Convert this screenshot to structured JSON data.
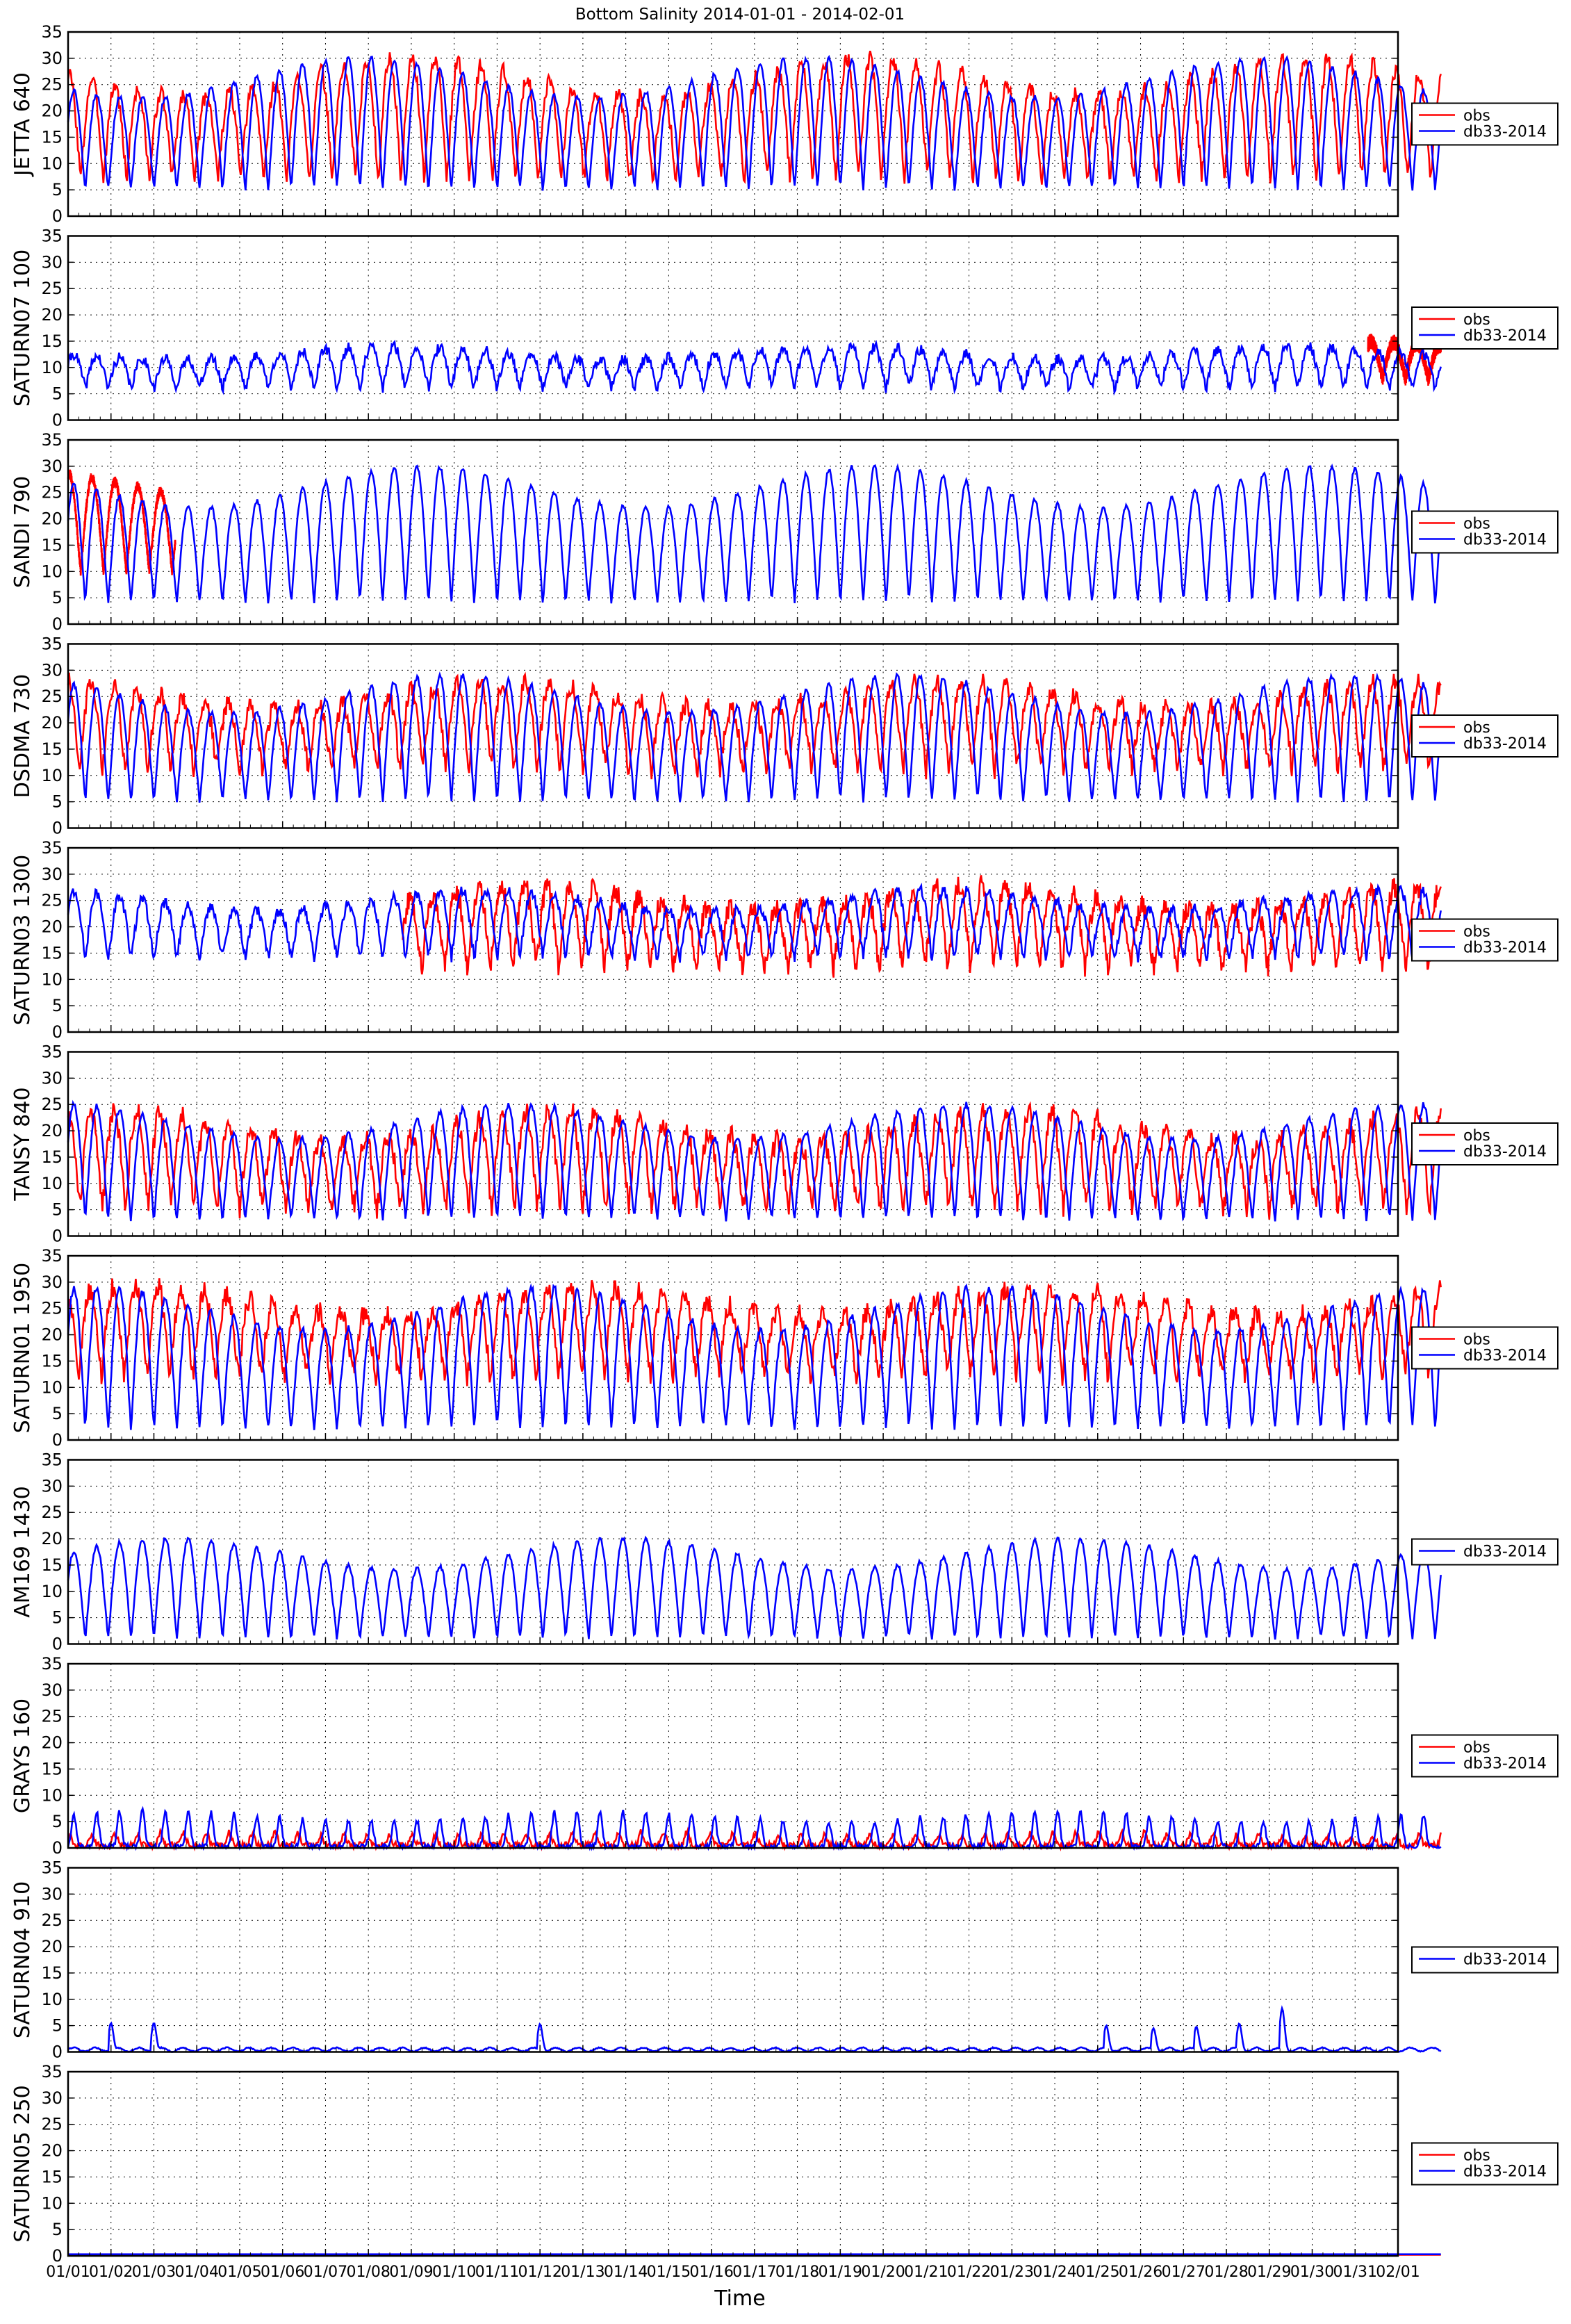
{
  "page": {
    "title": "Bottom Salinity 2014-01-01 - 2014-02-01",
    "xlabel": "Time"
  },
  "chart_data": [
    {
      "type": "line",
      "ylabel": "JETTA 640",
      "ylim": [
        0,
        35
      ],
      "yticks": [
        0,
        5,
        10,
        15,
        20,
        25,
        30,
        35
      ],
      "grid": true,
      "legend_position": "right",
      "series": [
        {
          "name": "obs",
          "color": "#ff0000",
          "profile": {
            "high": 30,
            "low": 7,
            "extent": [
              0,
              32
            ],
            "cycles": 60,
            "phase": 0.2,
            "noise": 1.5
          }
        },
        {
          "name": "db33-2014",
          "color": "#0000ff",
          "profile": {
            "high": 30,
            "low": 5,
            "extent": [
              0,
              32
            ],
            "cycles": 60,
            "phase": 0.0,
            "noise": 0.5
          }
        }
      ]
    },
    {
      "type": "line",
      "ylabel": "SATURN07 100",
      "ylim": [
        0,
        35
      ],
      "yticks": [
        0,
        5,
        10,
        15,
        20,
        25,
        30,
        35
      ],
      "grid": true,
      "legend_position": "right",
      "series": [
        {
          "name": "obs",
          "color": "#ff0000",
          "profile": {
            "high": 15,
            "low": 8,
            "extent": [
              30.3,
              32
            ],
            "cycles": 60,
            "phase": 0.3,
            "noise": 1.5
          }
        },
        {
          "name": "db33-2014",
          "color": "#0000ff",
          "profile": {
            "high": 14,
            "low": 6,
            "extent": [
              0,
              32
            ],
            "cycles": 60,
            "phase": 0.0,
            "noise": 1.0
          }
        }
      ]
    },
    {
      "type": "line",
      "ylabel": "SANDI 790",
      "ylim": [
        0,
        35
      ],
      "yticks": [
        0,
        5,
        10,
        15,
        20,
        25,
        30,
        35
      ],
      "grid": true,
      "legend_position": "right",
      "series": [
        {
          "name": "obs",
          "color": "#ff0000",
          "profile": {
            "high": 29,
            "low": 10,
            "extent": [
              0,
              2.5
            ],
            "cycles": 60,
            "phase": 0.2,
            "noise": 1.0
          }
        },
        {
          "name": "db33-2014",
          "color": "#0000ff",
          "profile": {
            "high": 30,
            "low": 4,
            "extent": [
              0,
              32
            ],
            "cycles": 60,
            "phase": 0.0,
            "noise": 0.4
          }
        }
      ]
    },
    {
      "type": "line",
      "ylabel": "DSDMA 730",
      "ylim": [
        0,
        35
      ],
      "yticks": [
        0,
        5,
        10,
        15,
        20,
        25,
        30,
        35
      ],
      "grid": true,
      "legend_position": "right",
      "series": [
        {
          "name": "obs",
          "color": "#ff0000",
          "profile": {
            "high": 28,
            "low": 11,
            "extent": [
              0,
              32
            ],
            "cycles": 60,
            "phase": 0.25,
            "noise": 1.8
          }
        },
        {
          "name": "db33-2014",
          "color": "#0000ff",
          "profile": {
            "high": 29,
            "low": 5,
            "extent": [
              0,
              32
            ],
            "cycles": 60,
            "phase": 0.0,
            "noise": 0.5
          }
        }
      ]
    },
    {
      "type": "line",
      "ylabel": "SATURN03 1300",
      "ylim": [
        0,
        35
      ],
      "yticks": [
        0,
        5,
        10,
        15,
        20,
        25,
        30,
        35
      ],
      "grid": true,
      "legend_position": "right",
      "series": [
        {
          "name": "obs",
          "color": "#ff0000",
          "profile": {
            "high": 28,
            "low": 12,
            "extent": [
              7.8,
              32
            ],
            "cycles": 60,
            "phase": 0.3,
            "noise": 2.0
          }
        },
        {
          "name": "db33-2014",
          "color": "#0000ff",
          "profile": {
            "high": 27,
            "low": 14,
            "extent": [
              0,
              32
            ],
            "cycles": 60,
            "phase": 0.0,
            "noise": 1.0
          }
        }
      ]
    },
    {
      "type": "line",
      "ylabel": "TANSY 840",
      "ylim": [
        0,
        35
      ],
      "yticks": [
        0,
        5,
        10,
        15,
        20,
        25,
        30,
        35
      ],
      "grid": true,
      "legend_position": "right",
      "series": [
        {
          "name": "obs",
          "color": "#ff0000",
          "profile": {
            "high": 24,
            "low": 5,
            "extent": [
              0,
              32
            ],
            "cycles": 60,
            "phase": 0.25,
            "noise": 2.0
          }
        },
        {
          "name": "db33-2014",
          "color": "#0000ff",
          "profile": {
            "high": 25,
            "low": 3,
            "extent": [
              0,
              32
            ],
            "cycles": 60,
            "phase": 0.0,
            "noise": 0.5
          }
        }
      ]
    },
    {
      "type": "line",
      "ylabel": "SATURN01 1950",
      "ylim": [
        0,
        35
      ],
      "yticks": [
        0,
        5,
        10,
        15,
        20,
        25,
        30,
        35
      ],
      "grid": true,
      "legend_position": "right",
      "series": [
        {
          "name": "obs",
          "color": "#ff0000",
          "profile": {
            "high": 29,
            "low": 12,
            "extent": [
              0,
              32
            ],
            "cycles": 60,
            "phase": 0.3,
            "noise": 2.0
          }
        },
        {
          "name": "db33-2014",
          "color": "#0000ff",
          "profile": {
            "high": 29,
            "low": 2,
            "extent": [
              0,
              32
            ],
            "cycles": 60,
            "phase": 0.0,
            "noise": 0.6
          }
        }
      ]
    },
    {
      "type": "line",
      "ylabel": "AM169 1430",
      "ylim": [
        0,
        35
      ],
      "yticks": [
        0,
        5,
        10,
        15,
        20,
        25,
        30,
        35
      ],
      "grid": true,
      "legend_position": "right",
      "series": [
        {
          "name": "db33-2014",
          "color": "#0000ff",
          "profile": {
            "high": 20,
            "low": 1,
            "extent": [
              0,
              32
            ],
            "cycles": 60,
            "phase": 0.0,
            "noise": 0.4
          }
        }
      ]
    },
    {
      "type": "line",
      "ylabel": "GRAYS 160",
      "ylim": [
        0,
        35
      ],
      "yticks": [
        0,
        5,
        10,
        15,
        20,
        25,
        30,
        35
      ],
      "grid": true,
      "legend_position": "right",
      "series": [
        {
          "name": "obs",
          "color": "#ff0000",
          "profile": {
            "high": 3,
            "low": 0.5,
            "extent": [
              0,
              32
            ],
            "cycles": 60,
            "phase": 0.2,
            "noise": 0.6,
            "spiky": true
          }
        },
        {
          "name": "db33-2014",
          "color": "#0000ff",
          "profile": {
            "high": 7,
            "low": 0.2,
            "extent": [
              0,
              32
            ],
            "cycles": 60,
            "phase": 0.0,
            "noise": 0.5,
            "spiky": true
          }
        }
      ]
    },
    {
      "type": "line",
      "ylabel": "SATURN04 910",
      "ylim": [
        0,
        35
      ],
      "yticks": [
        0,
        5,
        10,
        15,
        20,
        25,
        30,
        35
      ],
      "grid": true,
      "legend_position": "right",
      "series": [
        {
          "name": "db33-2014",
          "color": "#0000ff",
          "profile": {
            "high": 0.8,
            "low": 0.1,
            "extent": [
              0,
              32
            ],
            "cycles": 60,
            "phase": 0.0,
            "noise": 0.2,
            "spikes": [
              [
                1.0,
                5.5
              ],
              [
                2.0,
                5.5
              ],
              [
                11.0,
                5.3
              ],
              [
                24.2,
                5.0
              ],
              [
                25.3,
                4.5
              ],
              [
                26.3,
                4.8
              ],
              [
                27.3,
                5.4
              ],
              [
                28.3,
                8.3
              ]
            ]
          }
        }
      ]
    },
    {
      "type": "line",
      "ylabel": "SATURN05 250",
      "ylim": [
        0,
        35
      ],
      "yticks": [
        0,
        5,
        10,
        15,
        20,
        25,
        30,
        35
      ],
      "grid": true,
      "legend_position": "right",
      "series": [
        {
          "name": "obs",
          "color": "#ff0000",
          "profile": {
            "flat": 0.2,
            "extent": [
              0,
              32
            ]
          }
        },
        {
          "name": "db33-2014",
          "color": "#0000ff",
          "profile": {
            "flat": 0.3,
            "extent": [
              0,
              32
            ]
          }
        }
      ]
    }
  ],
  "x_axis": {
    "tick_labels": [
      "01/01",
      "01/02",
      "01/03",
      "01/04",
      "01/05",
      "01/06",
      "01/07",
      "01/08",
      "01/09",
      "01/10",
      "01/11",
      "01/12",
      "01/13",
      "01/14",
      "01/15",
      "01/16",
      "01/17",
      "01/18",
      "01/19",
      "01/20",
      "01/21",
      "01/22",
      "01/23",
      "01/24",
      "01/25",
      "01/26",
      "01/27",
      "01/28",
      "01/29",
      "01/30",
      "01/31",
      "02/01"
    ]
  }
}
